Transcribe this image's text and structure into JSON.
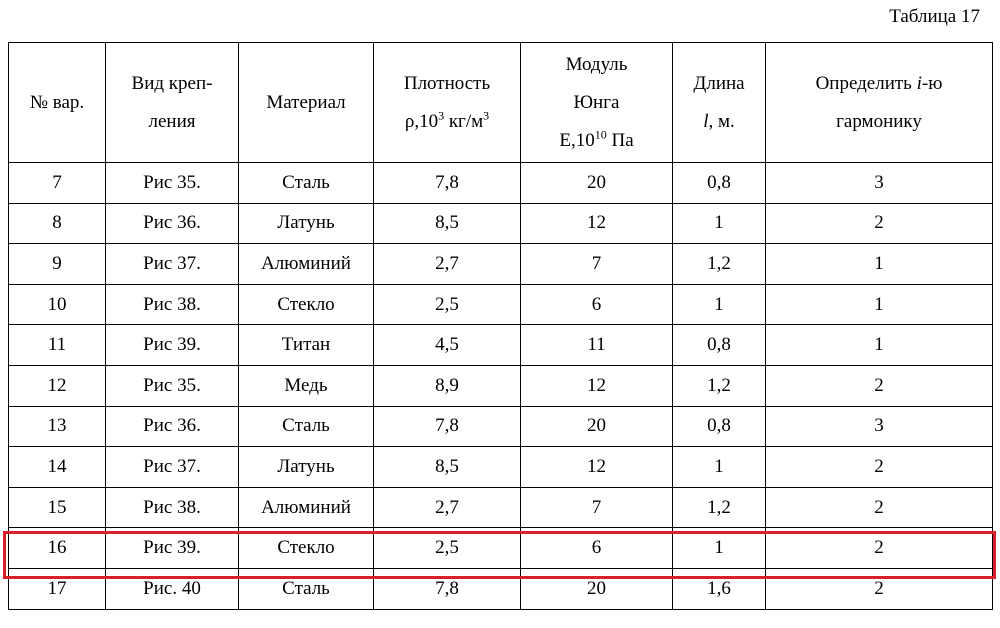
{
  "caption": "Таблица 17",
  "table": {
    "header": [
      [
        "№ вар."
      ],
      [
        "Вид креп-",
        "ления"
      ],
      [
        "Материал"
      ],
      [
        "Плотность",
        "ρ,10",
        "3",
        " кг/м",
        "3"
      ],
      [
        "Модуль",
        "Юнга",
        "Е,10",
        "10",
        " Па"
      ],
      [
        "Длина",
        "l",
        ", м."
      ],
      [
        "Определить ",
        "i",
        "-ю",
        "гармонику"
      ]
    ],
    "rows": [
      [
        "7",
        "Рис 35.",
        "Сталь",
        "7,8",
        "20",
        "0,8",
        "3"
      ],
      [
        "8",
        "Рис 36.",
        "Латунь",
        "8,5",
        "12",
        "1",
        "2"
      ],
      [
        "9",
        "Рис 37.",
        "Алюминий",
        "2,7",
        "7",
        "1,2",
        "1"
      ],
      [
        "10",
        "Рис 38.",
        "Стекло",
        "2,5",
        "6",
        "1",
        "1"
      ],
      [
        "11",
        "Рис 39.",
        "Титан",
        "4,5",
        "11",
        "0,8",
        "1"
      ],
      [
        "12",
        "Рис 35.",
        "Медь",
        "8,9",
        "12",
        "1,2",
        "2"
      ],
      [
        "13",
        "Рис 36.",
        "Сталь",
        "7,8",
        "20",
        "0,8",
        "3"
      ],
      [
        "14",
        "Рис 37.",
        "Латунь",
        "8,5",
        "12",
        "1",
        "2"
      ],
      [
        "15",
        "Рис 38.",
        "Алюминий",
        "2,7",
        "7",
        "1,2",
        "2"
      ],
      [
        "16",
        "Рис 39.",
        "Стекло",
        "2,5",
        "6",
        "1",
        "2"
      ],
      [
        "17",
        "Рис. 40",
        "Сталь",
        "7,8",
        "20",
        "1,6",
        "2"
      ]
    ]
  }
}
